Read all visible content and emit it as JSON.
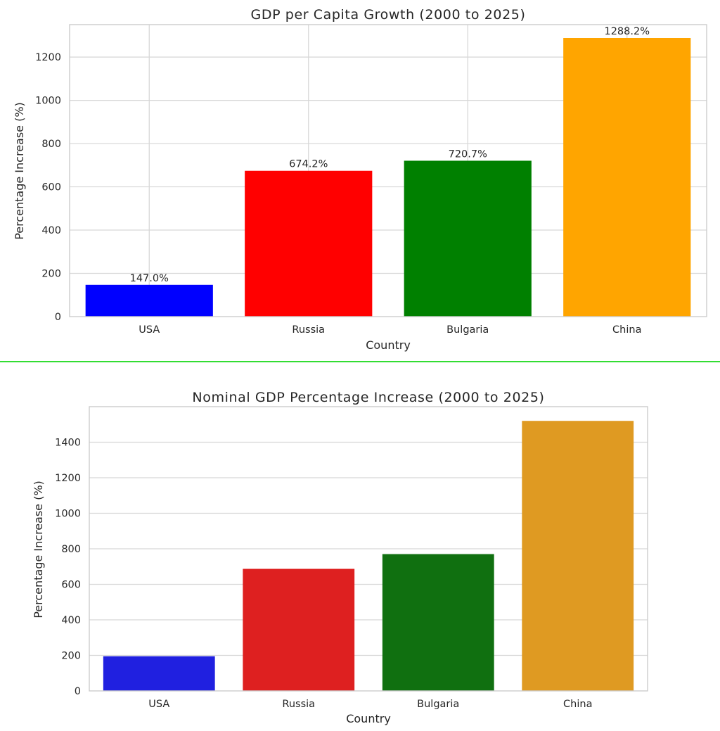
{
  "chart_data": [
    {
      "type": "bar",
      "title": "GDP per Capita Growth (2000 to 2025)",
      "xlabel": "Country",
      "ylabel": "Percentage Increase (%)",
      "categories": [
        "USA",
        "Russia",
        "Bulgaria",
        "China"
      ],
      "values": [
        147.0,
        674.2,
        720.7,
        1288.2
      ],
      "data_labels": [
        "147.0%",
        "674.2%",
        "720.7%",
        "1288.2%"
      ],
      "colors": [
        "#0000ff",
        "#ff0000",
        "#008000",
        "#ffa500"
      ],
      "ylim": [
        0,
        1350
      ],
      "yticks": [
        0,
        200,
        400,
        600,
        800,
        1000,
        1200
      ],
      "grid": "both"
    },
    {
      "type": "bar",
      "title": "Nominal GDP Percentage Increase (2000 to 2025)",
      "xlabel": "Country",
      "ylabel": "Percentage Increase (%)",
      "categories": [
        "USA",
        "Russia",
        "Bulgaria",
        "China"
      ],
      "values": [
        195,
        687,
        770,
        1520
      ],
      "colors": [
        "#2020e0",
        "#de2020",
        "#107010",
        "#df9a22"
      ],
      "ylim": [
        0,
        1600
      ],
      "yticks": [
        0,
        200,
        400,
        600,
        800,
        1000,
        1200,
        1400
      ],
      "grid": "y"
    }
  ]
}
